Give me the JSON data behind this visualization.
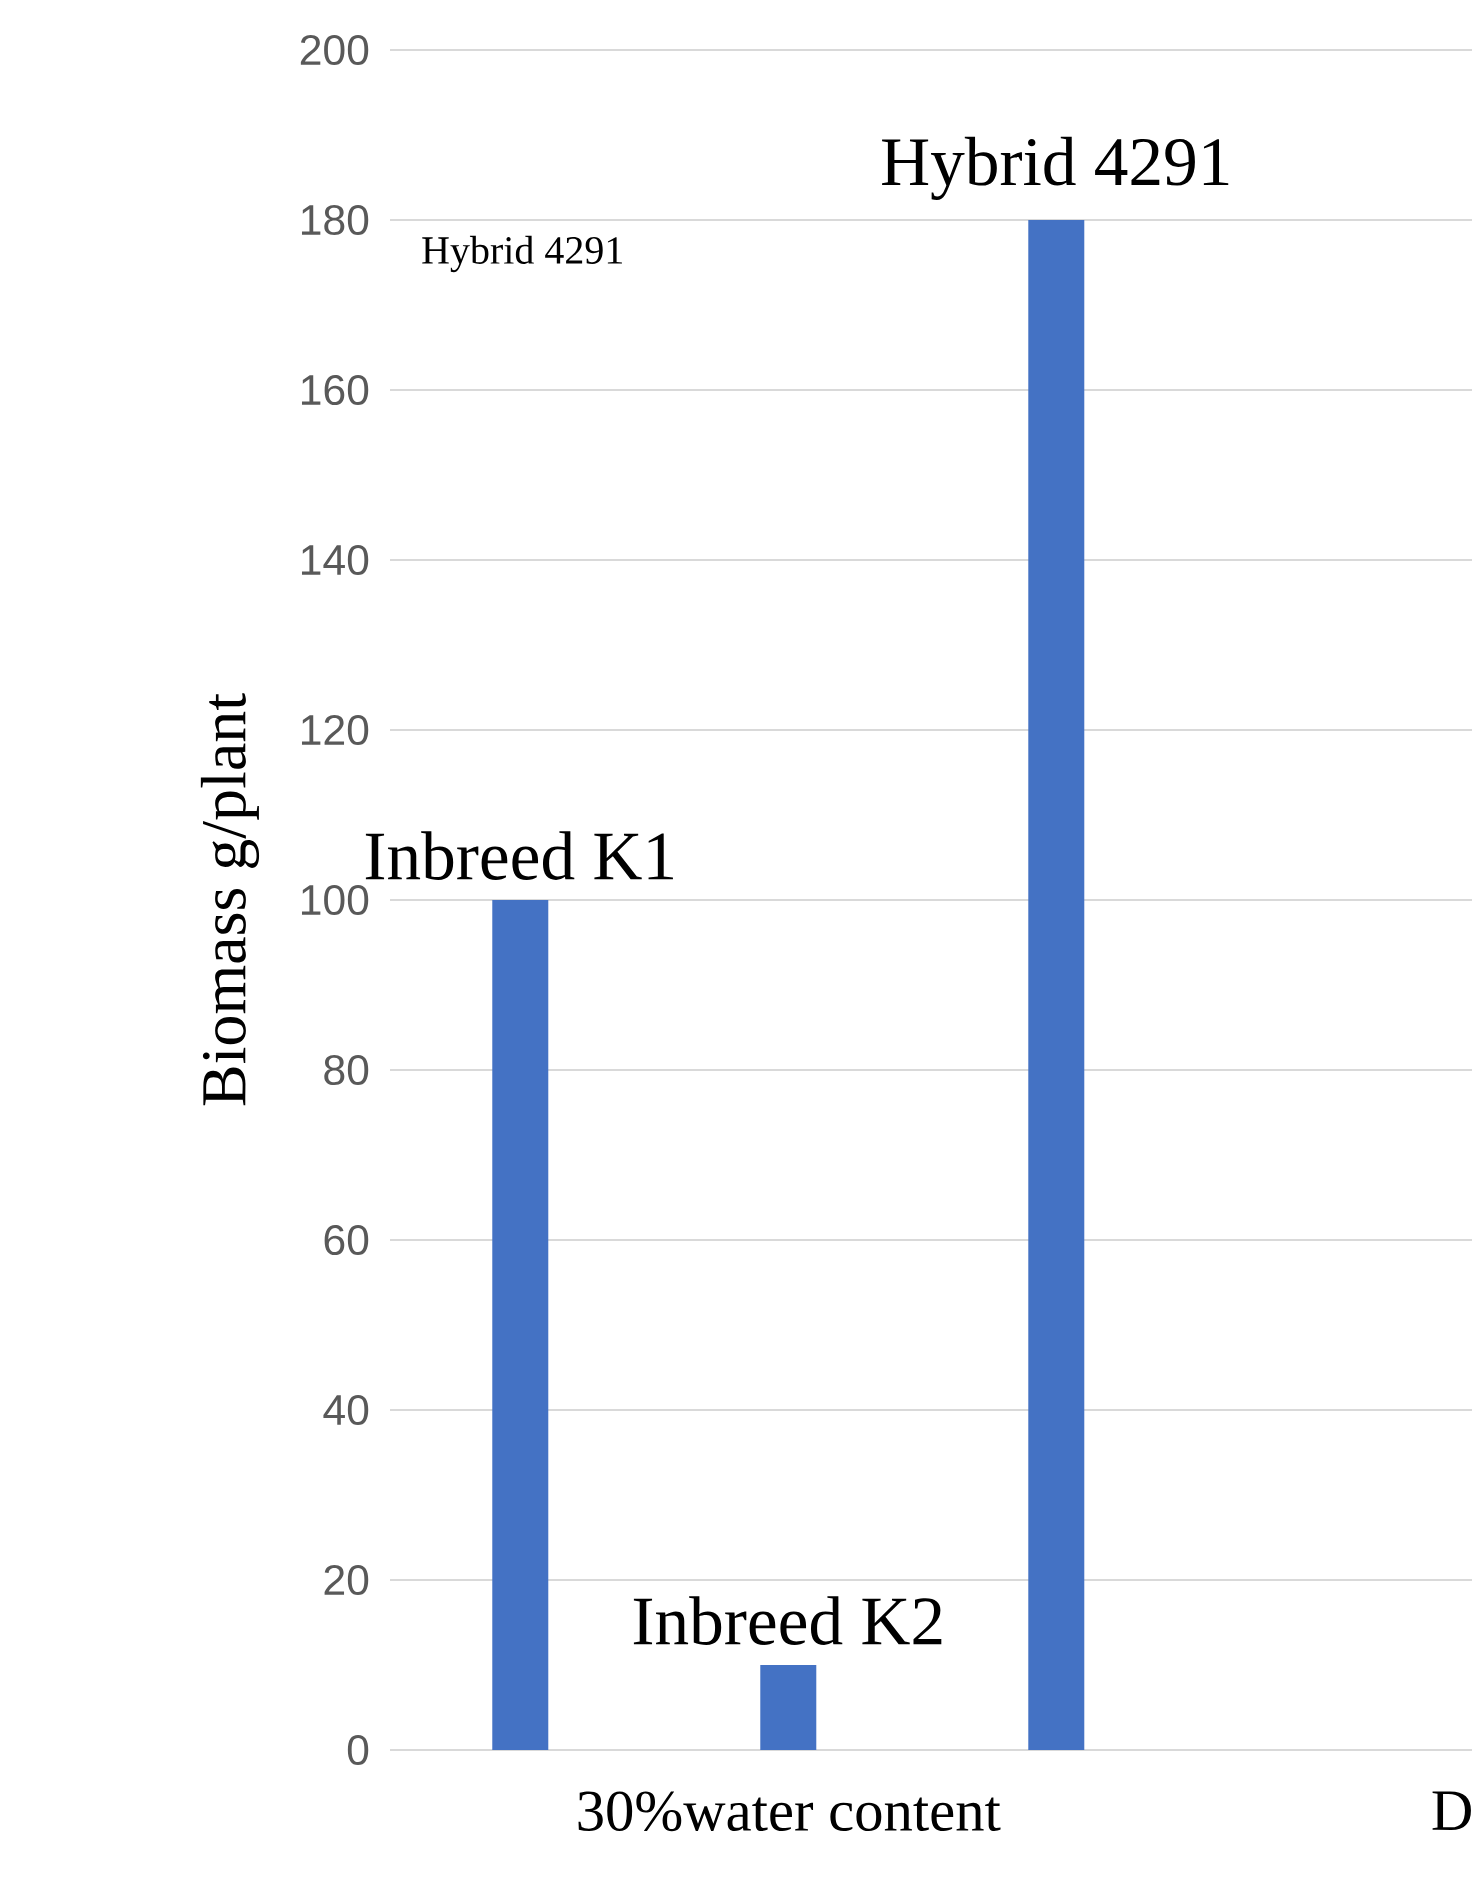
{
  "chart_data": {
    "type": "bar",
    "ylabel": "Biomass g/plant",
    "categories": [
      "30%water content",
      "D"
    ],
    "series": [
      {
        "name": "Inbreed K1",
        "color": "#4472c4",
        "values": [
          100,
          null
        ]
      },
      {
        "name": "Inbreed K2",
        "color": "#4472c4",
        "values": [
          10,
          null
        ]
      },
      {
        "name": "Hybrid 4291",
        "color": "#4472c4",
        "values": [
          180,
          null
        ]
      }
    ],
    "ylim": [
      0,
      200
    ],
    "yticks": [
      0,
      20,
      40,
      60,
      80,
      100,
      120,
      140,
      160,
      180,
      200
    ],
    "grid": "y",
    "legend": false,
    "annotations": [
      "Hybrid 4291"
    ]
  }
}
